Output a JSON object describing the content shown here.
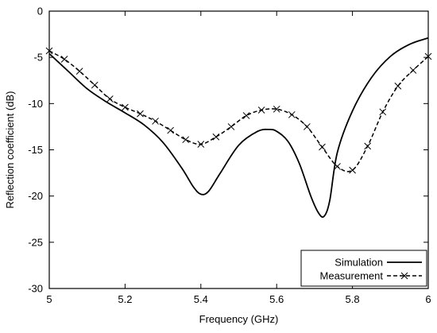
{
  "chart_data": {
    "type": "line",
    "title": "",
    "xlabel": "Frequency (GHz)",
    "ylabel": "Reflection coefficient (dB)",
    "xlim": [
      5,
      6
    ],
    "ylim": [
      -30,
      0
    ],
    "xticks": [
      "5",
      "5.2",
      "5.4",
      "5.6",
      "5.8",
      "6"
    ],
    "yticks": [
      "0",
      "-5",
      "-10",
      "-15",
      "-20",
      "-25",
      "-30"
    ],
    "grid": false,
    "legend_position": "bottom-right",
    "series": [
      {
        "name": "Simulation",
        "style": "solid",
        "marker": "none",
        "x": [
          5.0,
          5.05,
          5.1,
          5.15,
          5.2,
          5.25,
          5.3,
          5.35,
          5.38,
          5.4,
          5.42,
          5.45,
          5.5,
          5.55,
          5.58,
          5.6,
          5.63,
          5.66,
          5.69,
          5.71,
          5.725,
          5.74,
          5.76,
          5.8,
          5.85,
          5.9,
          5.95,
          6.0
        ],
        "y": [
          -4.6,
          -6.5,
          -8.4,
          -9.8,
          -11.0,
          -12.3,
          -14.2,
          -17.0,
          -19.0,
          -19.8,
          -19.5,
          -17.6,
          -14.5,
          -13.0,
          -12.8,
          -13.0,
          -14.1,
          -16.5,
          -20.0,
          -21.8,
          -22.2,
          -20.5,
          -15.3,
          -10.8,
          -7.2,
          -4.9,
          -3.6,
          -2.9
        ]
      },
      {
        "name": "Measurement",
        "style": "dashed",
        "marker": "x",
        "x": [
          5.0,
          5.04,
          5.08,
          5.12,
          5.16,
          5.2,
          5.24,
          5.28,
          5.32,
          5.36,
          5.4,
          5.44,
          5.48,
          5.52,
          5.56,
          5.6,
          5.64,
          5.68,
          5.72,
          5.76,
          5.8,
          5.84,
          5.88,
          5.92,
          5.96,
          6.0
        ],
        "y": [
          -4.3,
          -5.2,
          -6.5,
          -8.0,
          -9.5,
          -10.4,
          -11.1,
          -11.9,
          -12.9,
          -13.9,
          -14.4,
          -13.6,
          -12.5,
          -11.3,
          -10.7,
          -10.6,
          -11.2,
          -12.5,
          -14.7,
          -16.8,
          -17.2,
          -14.6,
          -10.9,
          -8.1,
          -6.4,
          -4.9
        ]
      }
    ]
  }
}
